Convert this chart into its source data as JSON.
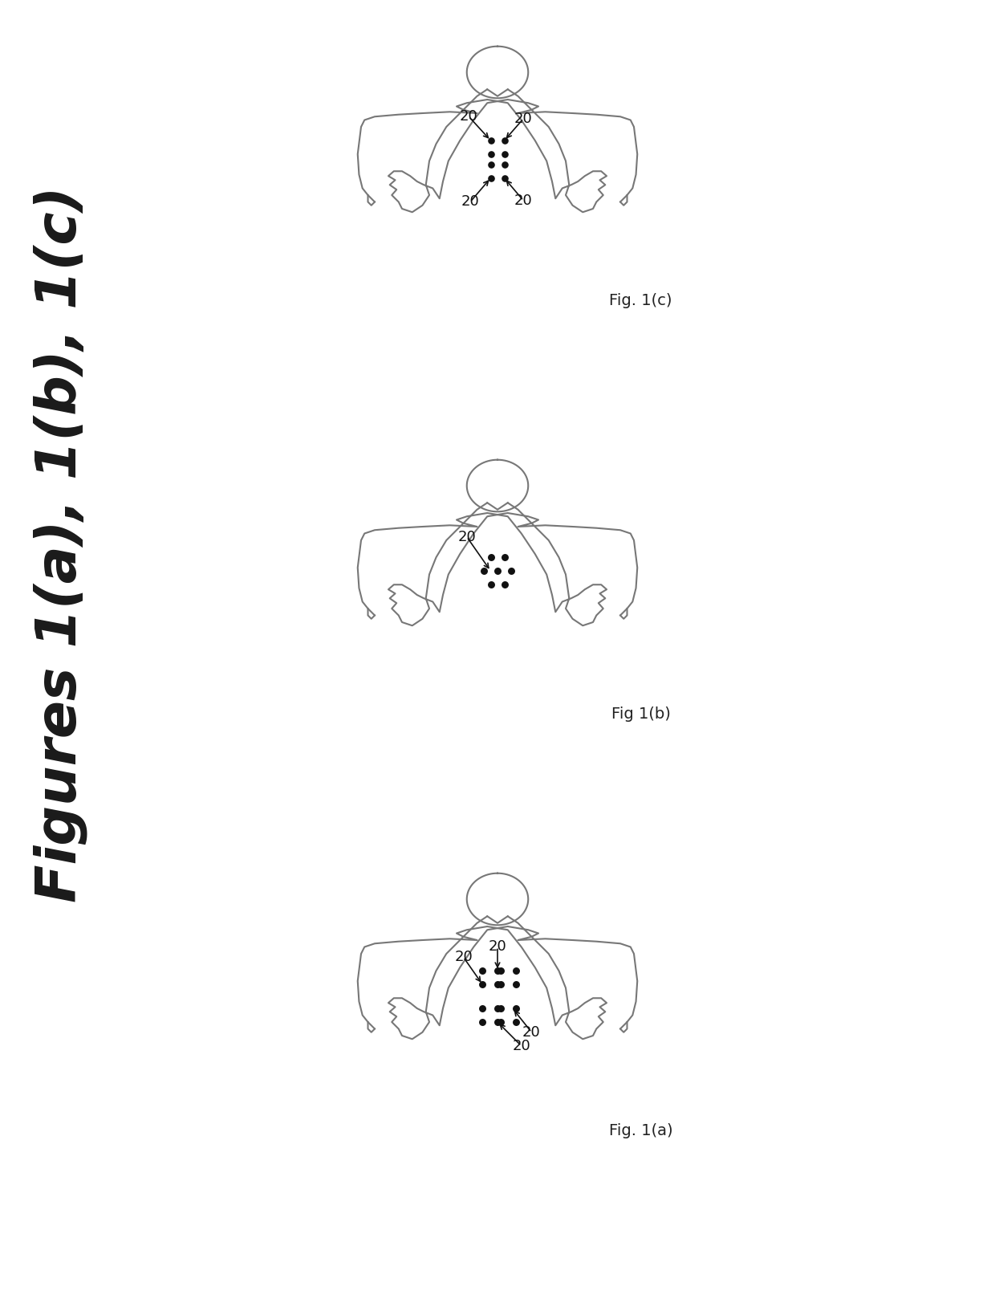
{
  "title": "Figures 1(a), 1(b), 1(c)",
  "title_fontsize": 52,
  "title_color": "#222222",
  "background_color": "#ffffff",
  "fig_label_a": "Fig. 1(a)",
  "fig_label_b": "Fig 1(b)",
  "fig_label_c": "Fig. 1(c)",
  "electrode_label": "20",
  "electrode_color": "#111111",
  "body_color": "#888888",
  "body_linewidth": 1.8,
  "arrow_color": "#111111",
  "dot_size": 55
}
